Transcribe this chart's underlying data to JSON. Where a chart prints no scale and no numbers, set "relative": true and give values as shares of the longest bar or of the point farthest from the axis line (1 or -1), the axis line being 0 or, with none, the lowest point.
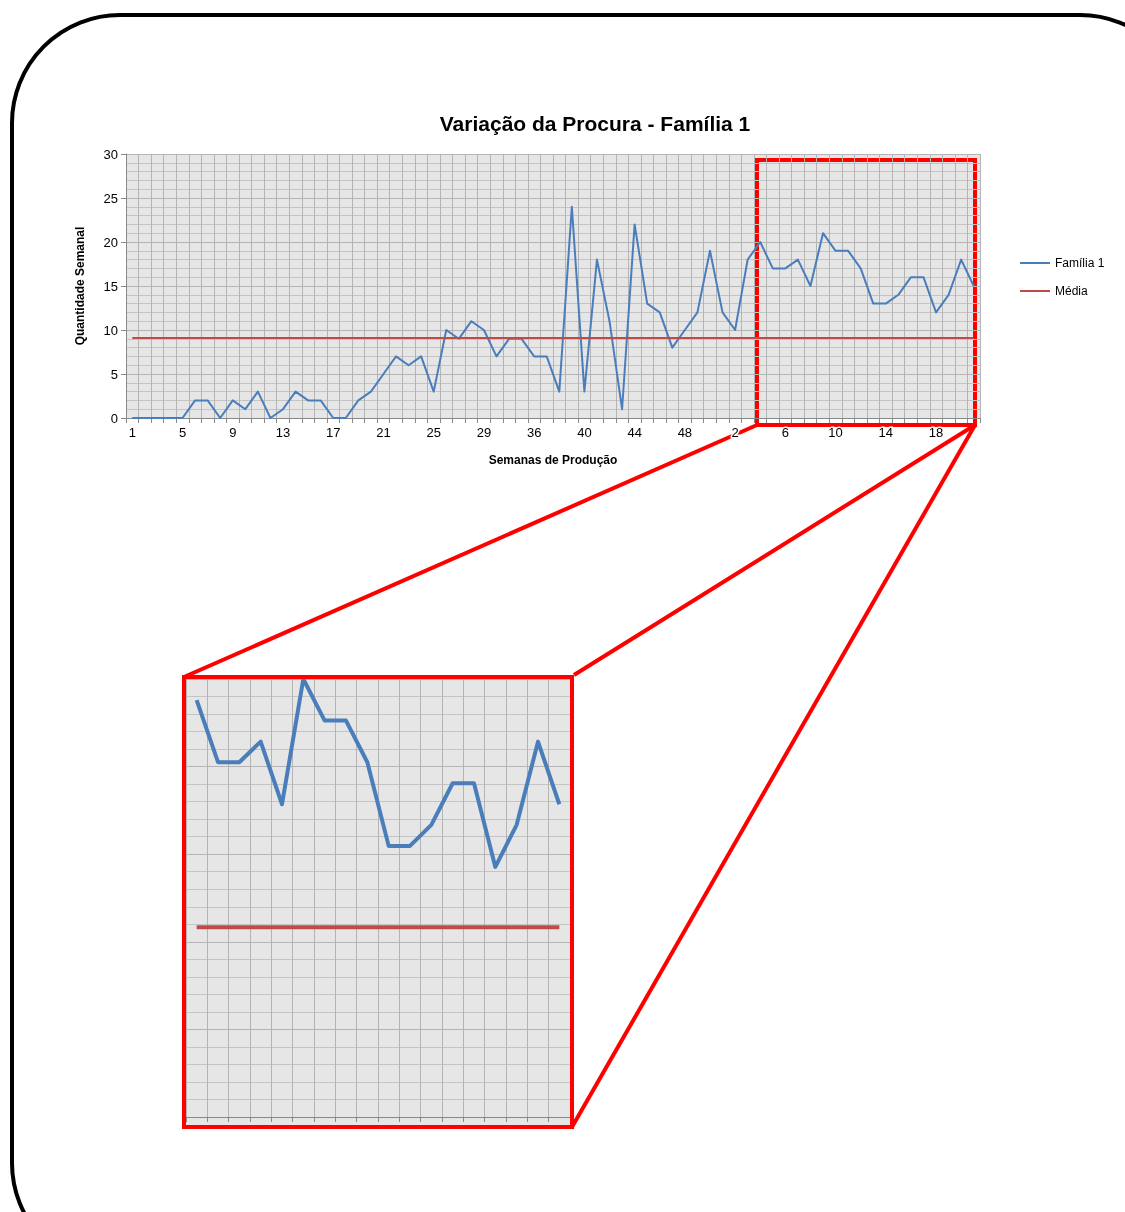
{
  "chart_data": [
    {
      "type": "line",
      "title": "Variação da Procura - Família 1",
      "xlabel": "Semanas de Produção",
      "ylabel": "Quantidade Semanal",
      "categories": [
        "1",
        null,
        null,
        null,
        "5",
        null,
        null,
        null,
        "9",
        null,
        null,
        null,
        "13",
        null,
        null,
        null,
        "17",
        null,
        null,
        null,
        "21",
        null,
        null,
        null,
        "25",
        null,
        null,
        null,
        "29",
        null,
        null,
        null,
        "36",
        null,
        null,
        null,
        "40",
        null,
        null,
        null,
        "44",
        null,
        null,
        null,
        "48",
        null,
        null,
        null,
        "2",
        null,
        null,
        null,
        "6",
        null,
        null,
        null,
        "10",
        null,
        null,
        null,
        "14",
        null,
        null,
        null,
        "18",
        null,
        null,
        null
      ],
      "series": [
        {
          "name": "Família 1",
          "color": "#4a7ebb",
          "values": [
            0,
            0,
            0,
            0,
            0,
            2,
            2,
            0,
            2,
            1,
            3,
            0,
            1,
            3,
            2,
            2,
            0,
            0,
            2,
            3,
            5,
            7,
            6,
            7,
            3,
            10,
            9,
            11,
            10,
            7,
            9,
            9,
            7,
            7,
            3,
            24,
            3,
            18,
            11,
            1,
            22,
            13,
            12,
            8,
            10,
            12,
            19,
            12,
            10,
            18,
            20,
            17,
            17,
            18,
            15,
            21,
            19,
            19,
            17,
            13,
            13,
            14,
            16,
            16,
            12,
            14,
            18,
            15
          ]
        },
        {
          "name": "Média",
          "color": "#be4b48",
          "values": [
            9.1,
            9.1,
            9.1,
            9.1,
            9.1,
            9.1,
            9.1,
            9.1,
            9.1,
            9.1,
            9.1,
            9.1,
            9.1,
            9.1,
            9.1,
            9.1,
            9.1,
            9.1,
            9.1,
            9.1,
            9.1,
            9.1,
            9.1,
            9.1,
            9.1,
            9.1,
            9.1,
            9.1,
            9.1,
            9.1,
            9.1,
            9.1,
            9.1,
            9.1,
            9.1,
            9.1,
            9.1,
            9.1,
            9.1,
            9.1,
            9.1,
            9.1,
            9.1,
            9.1,
            9.1,
            9.1,
            9.1,
            9.1,
            9.1,
            9.1,
            9.1,
            9.1,
            9.1,
            9.1,
            9.1,
            9.1,
            9.1,
            9.1,
            9.1,
            9.1,
            9.1,
            9.1,
            9.1,
            9.1,
            9.1,
            9.1,
            9.1,
            9.1
          ]
        }
      ],
      "ylim": [
        0,
        30
      ],
      "yticks": [
        0,
        5,
        10,
        15,
        20,
        25,
        30
      ],
      "grid": true,
      "legend": "right",
      "marker": "none"
    },
    {
      "type": "line",
      "categories": [
        null,
        null,
        null,
        null,
        null,
        null,
        null,
        null,
        null,
        null,
        null,
        null,
        null,
        null,
        null,
        null,
        null,
        null
      ],
      "series": [
        {
          "color": "#4a7ebb",
          "values": [
            0.952,
            0.81,
            0.81,
            0.857,
            0.714,
            1,
            0.905,
            0.905,
            0.81,
            0.619,
            0.619,
            0.667,
            0.762,
            0.762,
            0.571,
            0.667,
            0.857,
            0.714
          ]
        },
        {
          "color": "#be4b48",
          "values": [
            0.433,
            0.433,
            0.433,
            0.433,
            0.433,
            0.433,
            0.433,
            0.433,
            0.433,
            0.433,
            0.433,
            0.433,
            0.433,
            0.433,
            0.433,
            0.433,
            0.433,
            0.433
          ]
        }
      ],
      "relative": true,
      "grid": true,
      "marker": "none"
    }
  ]
}
